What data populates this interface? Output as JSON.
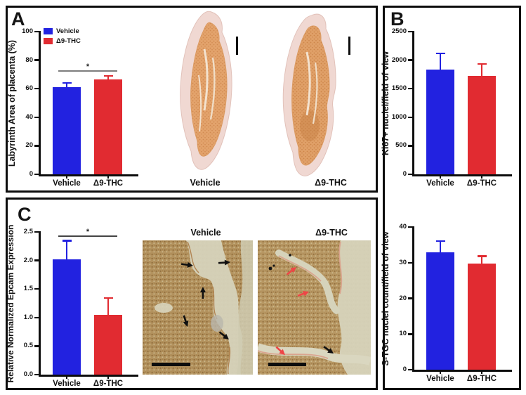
{
  "colors": {
    "vehicle_blue": "#2222E0",
    "thc_red": "#E12B31",
    "axis_black": "#0d0d0d",
    "sig_gray": "#7d7d7d",
    "sig_dark": "#444444",
    "arrow_black": "#101010",
    "arrow_red": "#ee4646",
    "scale_bar_black": "#0d0d0d"
  },
  "panels": {
    "a": {
      "letter": "A"
    },
    "b": {
      "letter": "B"
    },
    "c": {
      "letter": "C"
    }
  },
  "legend": {
    "items": [
      {
        "label": "Vehicle",
        "color_key": "vehicle_blue"
      },
      {
        "label": "Δ9-THC",
        "color_key": "thc_red"
      }
    ]
  },
  "panel_a": {
    "placenta_images": [
      {
        "label": "Vehicle"
      },
      {
        "label": "Δ9-THC"
      }
    ]
  },
  "panel_c": {
    "micrographs": [
      {
        "title": "Vehicle",
        "arrow_style": "black-arrows"
      },
      {
        "title": "Δ9-THC",
        "arrow_style": "red-and-black-arrows"
      }
    ]
  },
  "chart_data": [
    {
      "id": "labyrinth-area",
      "type": "bar",
      "panel": "A",
      "ylabel": "Labyrinth Area of placenta (%)",
      "categories": [
        "Vehicle",
        "Δ9-THC"
      ],
      "series": [
        {
          "name": "Vehicle",
          "value": 61,
          "error_top": 63.5,
          "color_key": "vehicle_blue"
        },
        {
          "name": "Δ9-THC",
          "value": 66.5,
          "error_top": 68.3,
          "color_key": "thc_red"
        }
      ],
      "ylim": [
        0,
        100
      ],
      "yticks": [
        {
          "value": 0,
          "label": "0"
        },
        {
          "value": 20,
          "label": "20"
        },
        {
          "value": 40,
          "label": "40"
        },
        {
          "value": 60,
          "label": "60"
        },
        {
          "value": 80,
          "label": "80"
        },
        {
          "value": 100,
          "label": "100"
        }
      ],
      "significance": {
        "label": "*",
        "y": 72,
        "color_key": "sig_gray"
      },
      "legend": true
    },
    {
      "id": "ki67-nuclei",
      "type": "bar",
      "panel": "B",
      "ylabel": "Ki67+ nuclei/field of view",
      "categories": [
        "Vehicle",
        "Δ9-THC"
      ],
      "series": [
        {
          "name": "Vehicle",
          "value": 1840,
          "error_top": 2100,
          "color_key": "vehicle_blue"
        },
        {
          "name": "Δ9-THC",
          "value": 1730,
          "error_top": 1920,
          "color_key": "thc_red"
        }
      ],
      "ylim": [
        0,
        2500
      ],
      "yticks": [
        {
          "value": 0,
          "label": "0"
        },
        {
          "value": 500,
          "label": "500"
        },
        {
          "value": 1000,
          "label": "1000"
        },
        {
          "value": 1500,
          "label": "1500"
        },
        {
          "value": 2000,
          "label": "2000"
        },
        {
          "value": 2500,
          "label": "2500"
        }
      ],
      "significance": null,
      "legend": false
    },
    {
      "id": "stgc-nuclei",
      "type": "bar",
      "panel": "B",
      "ylabel": "S-TGC nuclei count/field of view",
      "categories": [
        "Vehicle",
        "Δ9-THC"
      ],
      "series": [
        {
          "name": "Vehicle",
          "value": 33,
          "error_top": 35.8,
          "color_key": "vehicle_blue"
        },
        {
          "name": "Δ9-THC",
          "value": 29.8,
          "error_top": 31.6,
          "color_key": "thc_red"
        }
      ],
      "ylim": [
        0,
        40
      ],
      "yticks": [
        {
          "value": 0,
          "label": "0"
        },
        {
          "value": 10,
          "label": "10"
        },
        {
          "value": 20,
          "label": "20"
        },
        {
          "value": 30,
          "label": "30"
        },
        {
          "value": 40,
          "label": "40"
        }
      ],
      "significance": null,
      "legend": false
    },
    {
      "id": "epcam-expression",
      "type": "bar",
      "panel": "C",
      "ylabel": "Relative Normalized Epcam Expression",
      "categories": [
        "Vehicle",
        "Δ9-THC"
      ],
      "series": [
        {
          "name": "Vehicle",
          "value": 2.02,
          "error_top": 2.33,
          "color_key": "vehicle_blue"
        },
        {
          "name": "Δ9-THC",
          "value": 1.05,
          "error_top": 1.33,
          "color_key": "thc_red"
        }
      ],
      "ylim": [
        0,
        2.5
      ],
      "yticks": [
        {
          "value": 0,
          "label": "0.0"
        },
        {
          "value": 0.5,
          "label": "0.5"
        },
        {
          "value": 1,
          "label": "1.0"
        },
        {
          "value": 1.5,
          "label": "1.5"
        },
        {
          "value": 2,
          "label": "2.0"
        },
        {
          "value": 2.5,
          "label": "2.5"
        }
      ],
      "significance": {
        "label": "*",
        "y": 2.42,
        "color_key": "sig_dark"
      },
      "legend": false
    }
  ]
}
